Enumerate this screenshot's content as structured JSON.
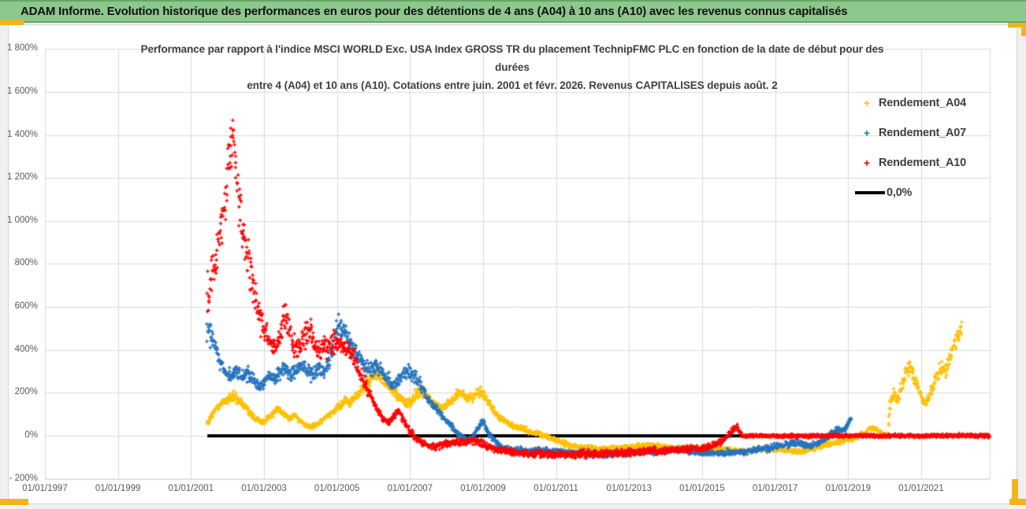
{
  "header": {
    "title": "ADAM Informe. Evolution historique des performances en euros pour des détentions de 4 ans (A04) à 10 ans (A10) avec les revenus connus capitalisés"
  },
  "chart_data": {
    "type": "scatter",
    "title_line1": "Performance par rapport à l'indice MSCI WORLD Exc. USA Index GROSS TR du placement TechnipFMC PLC en fonction de la date de début pour des",
    "title_line2": "durées",
    "title_line3": "entre 4 (A04) et 10 ans (A10). Cotations entre juin. 2001 et févr. 2026. Revenus CAPITALISES depuis août. 2",
    "grid": true,
    "legend_position": "right",
    "y_axis": {
      "unit": "%",
      "min": -200,
      "max": 1800,
      "step": 200,
      "tick_labels": [
        "1 800%",
        "1 600%",
        "1 400%",
        "1 200%",
        "1 000%",
        "800%",
        "600%",
        "400%",
        "200%",
        "0%",
        "- 200%"
      ],
      "tick_values": [
        1800,
        1600,
        1400,
        1200,
        1000,
        800,
        600,
        400,
        200,
        0,
        -200
      ]
    },
    "x_axis": {
      "axis_start_year": 1997,
      "axis_end_year": 2022.88,
      "tick_labels": [
        "01/01/1997",
        "01/01/1999",
        "01/01/2001",
        "01/01/2003",
        "01/01/2005",
        "01/01/2007",
        "01/01/2009",
        "01/01/2011",
        "01/01/2013",
        "01/01/2015",
        "01/01/2017",
        "01/01/2019",
        "01/01/2021"
      ],
      "tick_years": [
        1997,
        1999,
        2001,
        2003,
        2005,
        2007,
        2009,
        2011,
        2013,
        2015,
        2017,
        2019,
        2021
      ]
    },
    "reference_line": {
      "name": "0,0%",
      "color": "#000000",
      "value": 0,
      "from": 2001.45,
      "to": 2022.88
    },
    "series": [
      {
        "name": "Rendement_A04",
        "color": "#FFC000",
        "marker": "plus",
        "jitter_min": 6,
        "jitter_pct": 0.06,
        "anchors": [
          [
            2001.45,
            60
          ],
          [
            2001.6,
            100
          ],
          [
            2001.75,
            140
          ],
          [
            2001.9,
            160
          ],
          [
            2002.05,
            175
          ],
          [
            2002.2,
            185
          ],
          [
            2002.35,
            160
          ],
          [
            2002.5,
            130
          ],
          [
            2002.65,
            100
          ],
          [
            2002.8,
            75
          ],
          [
            2002.95,
            60
          ],
          [
            2003.1,
            80
          ],
          [
            2003.25,
            105
          ],
          [
            2003.4,
            125
          ],
          [
            2003.55,
            100
          ],
          [
            2003.7,
            80
          ],
          [
            2003.85,
            95
          ],
          [
            2004.0,
            70
          ],
          [
            2004.15,
            50
          ],
          [
            2004.3,
            40
          ],
          [
            2004.45,
            55
          ],
          [
            2004.6,
            75
          ],
          [
            2004.75,
            95
          ],
          [
            2004.9,
            115
          ],
          [
            2005.05,
            140
          ],
          [
            2005.2,
            165
          ],
          [
            2005.35,
            150
          ],
          [
            2005.5,
            185
          ],
          [
            2005.65,
            215
          ],
          [
            2005.8,
            245
          ],
          [
            2005.95,
            275
          ],
          [
            2006.1,
            295
          ],
          [
            2006.25,
            270
          ],
          [
            2006.4,
            240
          ],
          [
            2006.55,
            205
          ],
          [
            2006.7,
            180
          ],
          [
            2006.85,
            160
          ],
          [
            2007.0,
            150
          ],
          [
            2007.15,
            190
          ],
          [
            2007.3,
            210
          ],
          [
            2007.45,
            185
          ],
          [
            2007.6,
            160
          ],
          [
            2007.75,
            140
          ],
          [
            2007.9,
            130
          ],
          [
            2008.05,
            150
          ],
          [
            2008.2,
            175
          ],
          [
            2008.35,
            200
          ],
          [
            2008.5,
            185
          ],
          [
            2008.65,
            170
          ],
          [
            2008.8,
            195
          ],
          [
            2008.95,
            205
          ],
          [
            2009.1,
            170
          ],
          [
            2009.25,
            130
          ],
          [
            2009.4,
            95
          ],
          [
            2009.6,
            70
          ],
          [
            2009.8,
            50
          ],
          [
            2010.0,
            40
          ],
          [
            2010.2,
            25
          ],
          [
            2010.4,
            12
          ],
          [
            2010.6,
            5
          ],
          [
            2010.8,
            -5
          ],
          [
            2011.0,
            -20
          ],
          [
            2011.2,
            -35
          ],
          [
            2011.4,
            -45
          ],
          [
            2011.6,
            -50
          ],
          [
            2011.8,
            -55
          ],
          [
            2012.0,
            -58
          ],
          [
            2012.3,
            -62
          ],
          [
            2012.6,
            -60
          ],
          [
            2012.9,
            -55
          ],
          [
            2013.2,
            -48
          ],
          [
            2013.5,
            -42
          ],
          [
            2013.8,
            -48
          ],
          [
            2014.1,
            -55
          ],
          [
            2014.4,
            -60
          ],
          [
            2014.7,
            -58
          ],
          [
            2015.0,
            -55
          ],
          [
            2015.3,
            -60
          ],
          [
            2015.6,
            -65
          ],
          [
            2015.9,
            -68
          ],
          [
            2016.2,
            -70
          ],
          [
            2016.5,
            -65
          ],
          [
            2016.8,
            -60
          ],
          [
            2017.1,
            -62
          ],
          [
            2017.4,
            -68
          ],
          [
            2017.7,
            -72
          ],
          [
            2018.0,
            -60
          ],
          [
            2018.3,
            -45
          ],
          [
            2018.6,
            -33
          ],
          [
            2018.9,
            -22
          ],
          [
            2019.1,
            -12
          ],
          [
            2019.3,
            0
          ],
          [
            2019.5,
            15
          ],
          [
            2019.65,
            40
          ],
          [
            2019.8,
            25
          ],
          [
            2019.95,
            5
          ],
          [
            2020.08,
            -5
          ],
          [
            2020.15,
            150
          ],
          [
            2020.25,
            200
          ],
          [
            2020.35,
            170
          ],
          [
            2020.45,
            220
          ],
          [
            2020.55,
            280
          ],
          [
            2020.65,
            320
          ],
          [
            2020.75,
            300
          ],
          [
            2020.85,
            260
          ],
          [
            2020.95,
            210
          ],
          [
            2021.05,
            160
          ],
          [
            2021.15,
            150
          ],
          [
            2021.25,
            195
          ],
          [
            2021.35,
            240
          ],
          [
            2021.45,
            290
          ],
          [
            2021.55,
            320
          ],
          [
            2021.65,
            300
          ],
          [
            2021.75,
            340
          ],
          [
            2021.85,
            400
          ],
          [
            2021.95,
            440
          ],
          [
            2022.05,
            480
          ],
          [
            2022.12,
            500
          ]
        ]
      },
      {
        "name": "Rendement_A07",
        "color": "#2573BE",
        "marker": "plus",
        "jitter_min": 7,
        "jitter_pct": 0.055,
        "anchors": [
          [
            2001.45,
            500
          ],
          [
            2001.55,
            460
          ],
          [
            2001.65,
            420
          ],
          [
            2001.75,
            370
          ],
          [
            2001.85,
            320
          ],
          [
            2001.95,
            290
          ],
          [
            2002.1,
            280
          ],
          [
            2002.25,
            300
          ],
          [
            2002.4,
            265
          ],
          [
            2002.55,
            295
          ],
          [
            2002.7,
            260
          ],
          [
            2002.85,
            225
          ],
          [
            2003.0,
            245
          ],
          [
            2003.15,
            280
          ],
          [
            2003.3,
            260
          ],
          [
            2003.45,
            300
          ],
          [
            2003.6,
            320
          ],
          [
            2003.75,
            285
          ],
          [
            2003.9,
            305
          ],
          [
            2004.05,
            330
          ],
          [
            2004.2,
            300
          ],
          [
            2004.35,
            280
          ],
          [
            2004.5,
            310
          ],
          [
            2004.65,
            290
          ],
          [
            2004.8,
            350
          ],
          [
            2004.95,
            460
          ],
          [
            2005.05,
            520
          ],
          [
            2005.15,
            490
          ],
          [
            2005.3,
            450
          ],
          [
            2005.45,
            410
          ],
          [
            2005.6,
            370
          ],
          [
            2005.75,
            330
          ],
          [
            2005.9,
            310
          ],
          [
            2006.05,
            330
          ],
          [
            2006.2,
            300
          ],
          [
            2006.35,
            270
          ],
          [
            2006.5,
            240
          ],
          [
            2006.65,
            255
          ],
          [
            2006.8,
            280
          ],
          [
            2006.95,
            295
          ],
          [
            2007.1,
            280
          ],
          [
            2007.25,
            255
          ],
          [
            2007.4,
            200
          ],
          [
            2007.55,
            160
          ],
          [
            2007.7,
            130
          ],
          [
            2007.85,
            100
          ],
          [
            2008.0,
            70
          ],
          [
            2008.15,
            40
          ],
          [
            2008.3,
            10
          ],
          [
            2008.45,
            -15
          ],
          [
            2008.6,
            -25
          ],
          [
            2008.75,
            0
          ],
          [
            2008.9,
            50
          ],
          [
            2009.0,
            70
          ],
          [
            2009.1,
            30
          ],
          [
            2009.25,
            -10
          ],
          [
            2009.4,
            -40
          ],
          [
            2009.6,
            -55
          ],
          [
            2009.8,
            -65
          ],
          [
            2010.2,
            -70
          ],
          [
            2010.6,
            -65
          ],
          [
            2011.0,
            -72
          ],
          [
            2011.4,
            -78
          ],
          [
            2011.8,
            -82
          ],
          [
            2012.2,
            -88
          ],
          [
            2012.6,
            -85
          ],
          [
            2013.0,
            -80
          ],
          [
            2013.4,
            -78
          ],
          [
            2013.8,
            -72
          ],
          [
            2014.2,
            -65
          ],
          [
            2014.6,
            -70
          ],
          [
            2015.0,
            -78
          ],
          [
            2015.4,
            -82
          ],
          [
            2015.8,
            -78
          ],
          [
            2016.2,
            -72
          ],
          [
            2016.6,
            -62
          ],
          [
            2017.0,
            -50
          ],
          [
            2017.3,
            -40
          ],
          [
            2017.6,
            -30
          ],
          [
            2017.8,
            -42
          ],
          [
            2018.0,
            -50
          ],
          [
            2018.2,
            -30
          ],
          [
            2018.45,
            -5
          ],
          [
            2018.7,
            30
          ],
          [
            2018.85,
            15
          ],
          [
            2019.0,
            60
          ],
          [
            2019.1,
            88
          ]
        ]
      },
      {
        "name": "Rendement_A10",
        "color": "#FF0000",
        "marker": "plus",
        "jitter_min": 8,
        "jitter_pct": 0.06,
        "flat_zero": {
          "from": 2016.1,
          "to": 2022.88
        },
        "anchors": [
          [
            2001.45,
            640
          ],
          [
            2001.55,
            700
          ],
          [
            2001.65,
            800
          ],
          [
            2001.75,
            900
          ],
          [
            2001.85,
            1000
          ],
          [
            2001.95,
            1120
          ],
          [
            2002.05,
            1280
          ],
          [
            2002.12,
            1350
          ],
          [
            2002.2,
            1280
          ],
          [
            2002.28,
            1150
          ],
          [
            2002.38,
            1000
          ],
          [
            2002.48,
            900
          ],
          [
            2002.58,
            800
          ],
          [
            2002.72,
            680
          ],
          [
            2002.86,
            580
          ],
          [
            2003.0,
            500
          ],
          [
            2003.15,
            430
          ],
          [
            2003.3,
            400
          ],
          [
            2003.45,
            470
          ],
          [
            2003.55,
            560
          ],
          [
            2003.65,
            520
          ],
          [
            2003.8,
            430
          ],
          [
            2003.95,
            400
          ],
          [
            2004.1,
            460
          ],
          [
            2004.25,
            490
          ],
          [
            2004.4,
            420
          ],
          [
            2004.55,
            380
          ],
          [
            2004.7,
            420
          ],
          [
            2004.85,
            440
          ],
          [
            2005.0,
            420
          ],
          [
            2005.2,
            430
          ],
          [
            2005.35,
            400
          ],
          [
            2005.5,
            340
          ],
          [
            2005.65,
            280
          ],
          [
            2005.8,
            230
          ],
          [
            2005.95,
            170
          ],
          [
            2006.1,
            120
          ],
          [
            2006.25,
            80
          ],
          [
            2006.4,
            60
          ],
          [
            2006.55,
            90
          ],
          [
            2006.7,
            115
          ],
          [
            2006.85,
            60
          ],
          [
            2007.0,
            20
          ],
          [
            2007.15,
            -10
          ],
          [
            2007.3,
            -30
          ],
          [
            2007.5,
            -45
          ],
          [
            2007.7,
            -50
          ],
          [
            2007.9,
            -40
          ],
          [
            2008.1,
            -35
          ],
          [
            2008.3,
            -25
          ],
          [
            2008.5,
            -30
          ],
          [
            2008.7,
            -20
          ],
          [
            2008.9,
            -30
          ],
          [
            2009.1,
            -50
          ],
          [
            2009.4,
            -65
          ],
          [
            2009.7,
            -75
          ],
          [
            2010.0,
            -80
          ],
          [
            2010.5,
            -85
          ],
          [
            2011.0,
            -88
          ],
          [
            2011.5,
            -85
          ],
          [
            2012.0,
            -82
          ],
          [
            2012.5,
            -80
          ],
          [
            2013.0,
            -78
          ],
          [
            2013.5,
            -72
          ],
          [
            2014.0,
            -68
          ],
          [
            2014.5,
            -62
          ],
          [
            2015.0,
            -55
          ],
          [
            2015.3,
            -45
          ],
          [
            2015.6,
            -20
          ],
          [
            2015.8,
            20
          ],
          [
            2015.95,
            40
          ],
          [
            2016.05,
            10
          ],
          [
            2016.1,
            0
          ]
        ]
      }
    ]
  }
}
